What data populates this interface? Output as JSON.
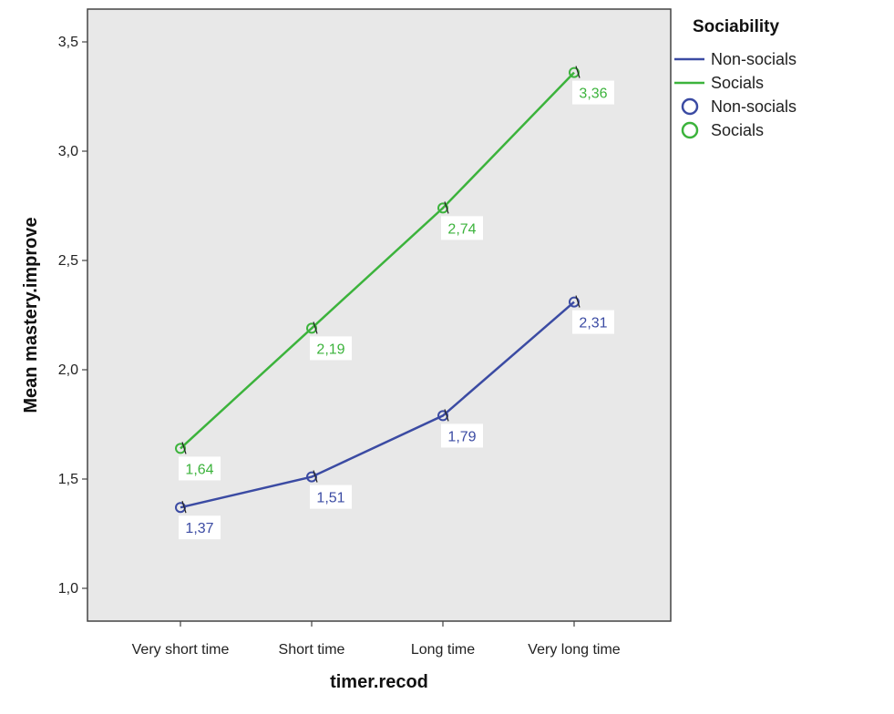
{
  "chart_data": {
    "type": "line",
    "xlabel": "timer.recod",
    "ylabel": "Mean mastery.improve",
    "categories": [
      "Very short time",
      "Short time",
      "Long time",
      "Very long time"
    ],
    "ylim": [
      0.85,
      3.65
    ],
    "yticks": [
      1.0,
      1.5,
      2.0,
      2.5,
      3.0,
      3.5
    ],
    "ytick_labels": [
      "1,0",
      "1,5",
      "2,0",
      "2,5",
      "3,0",
      "3,5"
    ],
    "grid": false,
    "background": "#e8e8e8",
    "legend": {
      "title": "Sociability",
      "placement": "right",
      "entries": [
        {
          "label": "Non-socials",
          "marker": "line",
          "color": "#3b4ba3"
        },
        {
          "label": "Socials",
          "marker": "line",
          "color": "#3cb33c"
        },
        {
          "label": "Non-socials",
          "marker": "circle",
          "color": "#3b4ba3"
        },
        {
          "label": "Socials",
          "marker": "circle",
          "color": "#3cb33c"
        }
      ]
    },
    "series": [
      {
        "name": "Non-socials",
        "color": "#3b4ba3",
        "values": [
          1.37,
          1.51,
          1.79,
          2.31
        ],
        "labels": [
          "1,37",
          "1,51",
          "1,79",
          "2,31"
        ]
      },
      {
        "name": "Socials",
        "color": "#3cb33c",
        "values": [
          1.64,
          2.19,
          2.74,
          3.36
        ],
        "labels": [
          "1,64",
          "2,19",
          "2,74",
          "3,36"
        ]
      }
    ]
  }
}
